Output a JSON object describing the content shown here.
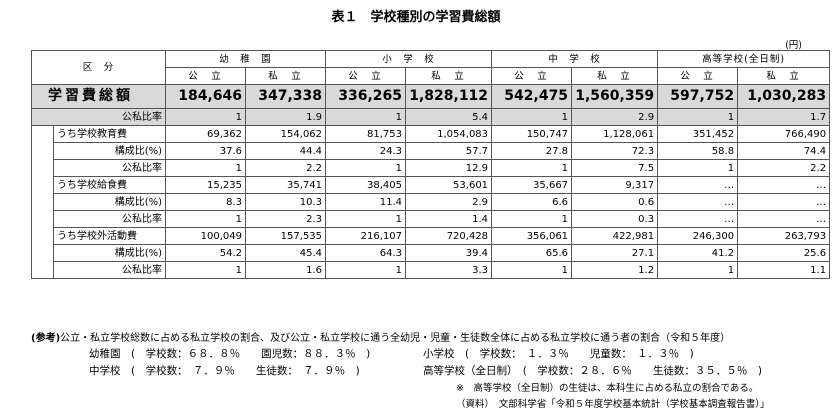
{
  "title": "表１　学校種別の学習費総額",
  "unit": "(円)",
  "header": {
    "kubun": "区　分",
    "groups": [
      "幼　稚　園",
      "小　学　校",
      "中　学　校",
      "高等学校(全日制)"
    ],
    "sub": [
      "公　立",
      "私　立",
      "公　立",
      "私　立",
      "公　立",
      "私　立",
      "公　立",
      "私　立"
    ]
  },
  "rows": {
    "total": {
      "label": "学習費総額",
      "values": [
        "184,646",
        "347,338",
        "336,265",
        "1,828,112",
        "542,475",
        "1,560,359",
        "597,752",
        "1,030,283"
      ]
    },
    "total_ratio": {
      "label": "公私比率",
      "values": [
        "1",
        "1.9",
        "1",
        "5.4",
        "1",
        "2.9",
        "1",
        "1.7"
      ]
    },
    "edu": {
      "label": "うち学校教育費",
      "values": [
        "69,362",
        "154,062",
        "81,753",
        "1,054,083",
        "150,747",
        "1,128,061",
        "351,452",
        "766,490"
      ]
    },
    "edu_comp": {
      "label": "構成比(%)",
      "values": [
        "37.6",
        "44.4",
        "24.3",
        "57.7",
        "27.8",
        "72.3",
        "58.8",
        "74.4"
      ]
    },
    "edu_ratio": {
      "label": "公私比率",
      "values": [
        "1",
        "2.2",
        "1",
        "12.9",
        "1",
        "7.5",
        "1",
        "2.2"
      ]
    },
    "lunch": {
      "label": "うち学校給食費",
      "values": [
        "15,235",
        "35,741",
        "38,405",
        "53,601",
        "35,667",
        "9,317",
        "…",
        "…"
      ]
    },
    "lunch_comp": {
      "label": "構成比(%)",
      "values": [
        "8.3",
        "10.3",
        "11.4",
        "2.9",
        "6.6",
        "0.6",
        "…",
        "…"
      ]
    },
    "lunch_ratio": {
      "label": "公私比率",
      "values": [
        "1",
        "2.3",
        "1",
        "1.4",
        "1",
        "0.3",
        "…",
        "…"
      ]
    },
    "extra": {
      "label": "うち学校外活動費",
      "values": [
        "100,049",
        "157,535",
        "216,107",
        "720,428",
        "356,061",
        "422,981",
        "246,300",
        "263,793"
      ]
    },
    "extra_comp": {
      "label": "構成比(%)",
      "values": [
        "54.2",
        "45.4",
        "64.3",
        "39.4",
        "65.6",
        "27.1",
        "41.2",
        "25.6"
      ]
    },
    "extra_ratio": {
      "label": "公私比率",
      "values": [
        "1",
        "1.6",
        "1",
        "3.3",
        "1",
        "1.2",
        "1",
        "1.1"
      ]
    }
  },
  "notes": {
    "ref_label": "(参考)",
    "ref_text": "公立・私立学校総数に占める私立学校の割合、及び公立・私立学校に通う全幼児・児童・生徒数全体に占める私立学校に通う者の割合（令和５年度）",
    "kinder": "幼稚園　(　学校数：６８．８％　　園児数：８８．３％　)",
    "elem": "小学校　(　学校数：　１．３％　　児童数：　１．３％　)",
    "junior": "中学校　(　学校数：　７．９％　　生徒数：　７．９％　)",
    "high": "高等学校（全日制）　(　学校数：２８．６％　　生徒数：３５．５％　)",
    "footnote": "※　高等学校（全日制）の生徒は、本科生に占める私立の割合である。",
    "source": "（資料）　文部科学省「令和５年度学校基本統計（学校基本調査報告書）」"
  }
}
